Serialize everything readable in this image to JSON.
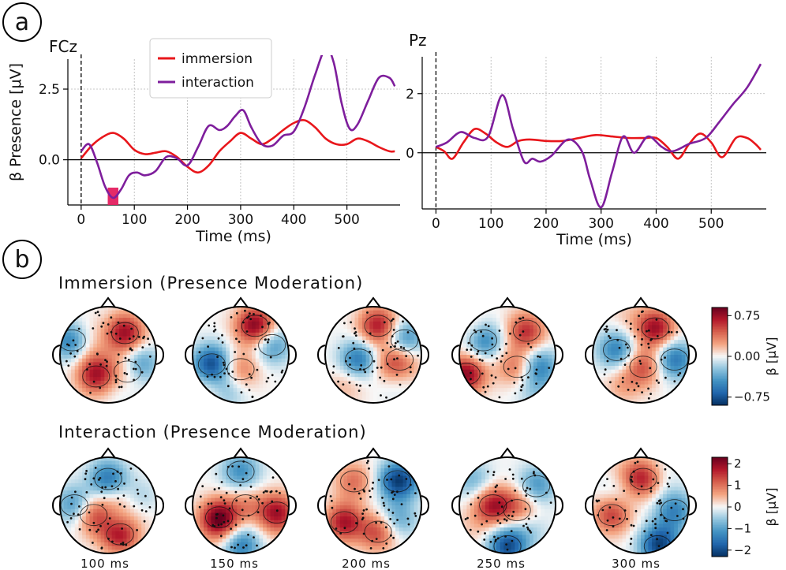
{
  "panels": {
    "a": {
      "label": "a"
    },
    "b": {
      "label": "b"
    }
  },
  "chart_data": [
    {
      "type": "line",
      "channel": "FCz",
      "xlabel": "Time (ms)",
      "ylabel": "β Presence [μV]",
      "xlim": [
        -25,
        600
      ],
      "ylim": [
        -1.6,
        3.7
      ],
      "xticks": [
        0,
        100,
        200,
        300,
        400,
        500
      ],
      "yticks": [
        0.0,
        2.5
      ],
      "ytick_labels": [
        "0.0",
        "2.5"
      ],
      "grid": true,
      "stimulus_onset_ms": 0,
      "significant_window": {
        "series": "interaction",
        "x": [
          50,
          70
        ]
      },
      "legend": {
        "placement": "top-center",
        "entries": [
          "immersion",
          "interaction"
        ]
      },
      "series": [
        {
          "name": "immersion",
          "color": "#e8161b",
          "x": [
            0,
            20,
            40,
            60,
            80,
            100,
            120,
            140,
            160,
            180,
            200,
            220,
            240,
            260,
            280,
            300,
            320,
            340,
            360,
            380,
            400,
            420,
            440,
            460,
            480,
            500,
            520,
            540,
            560,
            580,
            590
          ],
          "y": [
            0.05,
            0.5,
            0.8,
            0.95,
            0.75,
            0.35,
            0.2,
            0.25,
            0.3,
            0.1,
            -0.25,
            -0.45,
            -0.2,
            0.3,
            0.65,
            0.95,
            0.75,
            0.55,
            0.75,
            1.05,
            1.3,
            1.4,
            1.15,
            0.75,
            0.55,
            0.55,
            0.75,
            0.65,
            0.45,
            0.3,
            0.3
          ]
        },
        {
          "name": "interaction",
          "color": "#7e1e9c",
          "x": [
            0,
            15,
            30,
            45,
            60,
            75,
            90,
            105,
            120,
            140,
            160,
            180,
            200,
            220,
            240,
            260,
            275,
            290,
            305,
            320,
            340,
            360,
            380,
            400,
            420,
            440,
            460,
            475,
            490,
            505,
            520,
            540,
            560,
            580,
            590
          ],
          "y": [
            0.3,
            0.55,
            -0.1,
            -0.95,
            -1.35,
            -1.05,
            -0.55,
            -0.45,
            -0.55,
            -0.4,
            0.1,
            0.05,
            -0.2,
            0.45,
            1.2,
            1.05,
            1.2,
            1.55,
            1.75,
            1.15,
            0.55,
            0.5,
            0.85,
            1.0,
            1.85,
            3.0,
            3.95,
            3.45,
            2.0,
            1.1,
            1.25,
            2.1,
            2.9,
            2.9,
            2.6
          ]
        }
      ]
    },
    {
      "type": "line",
      "channel": "Pz",
      "xlabel": "Time (ms)",
      "ylabel": "",
      "xlim": [
        -25,
        600
      ],
      "ylim": [
        -1.9,
        3.3
      ],
      "xticks": [
        0,
        100,
        200,
        300,
        400,
        500
      ],
      "yticks": [
        0,
        2
      ],
      "ytick_labels": [
        "0",
        "2"
      ],
      "grid": true,
      "stimulus_onset_ms": 0,
      "series": [
        {
          "name": "immersion",
          "color": "#e8161b",
          "x": [
            0,
            15,
            30,
            50,
            70,
            90,
            110,
            130,
            150,
            170,
            200,
            230,
            260,
            290,
            320,
            350,
            380,
            400,
            420,
            440,
            460,
            480,
            500,
            520,
            545,
            565,
            580,
            590
          ],
          "y": [
            0.2,
            0.05,
            -0.2,
            0.35,
            0.8,
            0.65,
            0.35,
            0.2,
            0.4,
            0.45,
            0.4,
            0.4,
            0.5,
            0.6,
            0.55,
            0.5,
            0.5,
            0.5,
            0.2,
            -0.2,
            0.3,
            0.65,
            0.35,
            -0.15,
            0.5,
            0.5,
            0.3,
            0.1
          ]
        },
        {
          "name": "interaction",
          "color": "#7e1e9c",
          "x": [
            0,
            20,
            45,
            70,
            95,
            120,
            140,
            160,
            175,
            190,
            210,
            240,
            265,
            280,
            300,
            320,
            340,
            360,
            385,
            410,
            430,
            460,
            490,
            515,
            540,
            565,
            590
          ],
          "y": [
            0.2,
            0.35,
            0.7,
            0.5,
            0.55,
            1.95,
            0.8,
            -0.3,
            -0.2,
            -0.3,
            -0.1,
            0.45,
            0.05,
            -0.9,
            -1.85,
            -0.65,
            0.55,
            0.0,
            0.55,
            0.2,
            0.05,
            0.3,
            0.5,
            1.05,
            1.65,
            2.2,
            3.0
          ]
        }
      ]
    },
    {
      "type": "heatmap",
      "chart_kind": "topomap",
      "title": "Immersion (Presence Moderation)",
      "times": [
        "100 ms",
        "150 ms",
        "200 ms",
        "250 ms",
        "300 ms"
      ],
      "colorbar": {
        "label": "β [μV]",
        "range": [
          -0.9,
          0.9
        ],
        "ticks": [
          0.75,
          0.0,
          -0.75
        ],
        "tick_labels": [
          "0.75",
          "0.00",
          "−0.75"
        ]
      },
      "maps": [
        {
          "seed": 11,
          "hotspots": [
            [
              0.35,
              -0.45,
              0.75
            ],
            [
              -0.25,
              0.45,
              0.6
            ],
            [
              0.4,
              0.35,
              0.3
            ],
            [
              -0.75,
              -0.3,
              -0.7
            ],
            [
              0.65,
              0.2,
              -0.5
            ]
          ]
        },
        {
          "seed": 23,
          "hotspots": [
            [
              0.3,
              -0.6,
              0.85
            ],
            [
              0.0,
              0.3,
              0.4
            ],
            [
              -0.6,
              0.2,
              -0.55
            ],
            [
              0.65,
              -0.2,
              -0.45
            ],
            [
              -0.3,
              0.75,
              -0.3
            ]
          ]
        },
        {
          "seed": 37,
          "hotspots": [
            [
              0.1,
              -0.6,
              0.7
            ],
            [
              0.55,
              0.1,
              0.45
            ],
            [
              -0.3,
              0.1,
              -0.6
            ],
            [
              0.65,
              -0.3,
              -0.55
            ],
            [
              -0.55,
              0.6,
              0.2
            ]
          ]
        },
        {
          "seed": 41,
          "hotspots": [
            [
              -0.85,
              0.4,
              0.8
            ],
            [
              0.4,
              -0.5,
              0.7
            ],
            [
              0.2,
              0.25,
              0.35
            ],
            [
              -0.5,
              -0.3,
              -0.6
            ],
            [
              0.65,
              0.25,
              -0.55
            ]
          ]
        },
        {
          "seed": 53,
          "hotspots": [
            [
              0.3,
              -0.55,
              0.75
            ],
            [
              0.05,
              0.25,
              0.5
            ],
            [
              -0.5,
              -0.1,
              -0.55
            ],
            [
              0.7,
              0.1,
              -0.6
            ],
            [
              -0.4,
              0.65,
              0.25
            ]
          ]
        }
      ]
    },
    {
      "type": "heatmap",
      "chart_kind": "topomap",
      "title": "Interaction (Presence Moderation)",
      "times": [
        "100 ms",
        "150 ms",
        "200 ms",
        "250 ms",
        "300 ms"
      ],
      "colorbar": {
        "label": "β [μV]",
        "range": [
          -2.3,
          2.3
        ],
        "ticks": [
          2,
          1,
          0,
          -1,
          -2
        ],
        "tick_labels": [
          "2",
          "1",
          "0",
          "−1",
          "−2"
        ]
      },
      "maps": [
        {
          "seed": 61,
          "hotspots": [
            [
              0.25,
              0.6,
              1.9
            ],
            [
              -0.3,
              0.2,
              1.3
            ],
            [
              0.0,
              -0.55,
              -1.5
            ],
            [
              -0.7,
              0.0,
              -1.2
            ],
            [
              0.6,
              -0.1,
              -0.9
            ]
          ]
        },
        {
          "seed": 73,
          "hotspots": [
            [
              -0.45,
              0.25,
              1.9
            ],
            [
              0.75,
              0.15,
              1.8
            ],
            [
              0.1,
              0.0,
              0.7
            ],
            [
              0.0,
              -0.7,
              -1.2
            ],
            [
              0.0,
              0.8,
              -1.6
            ]
          ]
        },
        {
          "seed": 89,
          "hotspots": [
            [
              -0.6,
              0.35,
              1.8
            ],
            [
              0.1,
              0.55,
              1.4
            ],
            [
              -0.4,
              -0.5,
              1.0
            ],
            [
              0.5,
              -0.5,
              -1.7
            ],
            [
              0.5,
              0.3,
              -1.0
            ]
          ]
        },
        {
          "seed": 97,
          "hotspots": [
            [
              -0.3,
              0.0,
              1.8
            ],
            [
              0.2,
              0.1,
              0.9
            ],
            [
              0.0,
              0.85,
              -2.0
            ],
            [
              0.6,
              -0.4,
              -1.2
            ],
            [
              -0.7,
              -0.5,
              -0.8
            ]
          ]
        },
        {
          "seed": 101,
          "hotspots": [
            [
              0.05,
              -0.55,
              1.8
            ],
            [
              -0.6,
              0.2,
              1.4
            ],
            [
              0.35,
              0.85,
              -1.7
            ],
            [
              0.7,
              0.1,
              -1.3
            ],
            [
              -0.5,
              -0.4,
              -0.6
            ]
          ]
        }
      ]
    }
  ]
}
